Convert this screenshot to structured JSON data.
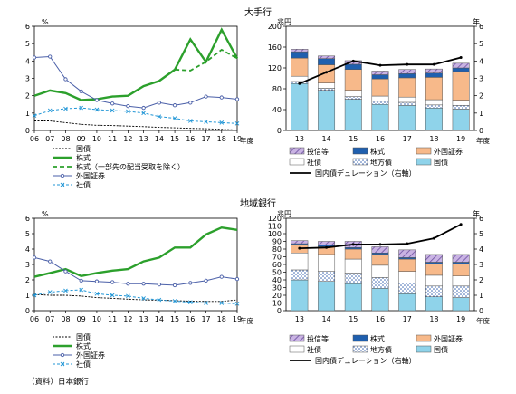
{
  "sections": [
    {
      "title": "大手行",
      "left": {
        "unit": "%",
        "x_unit": "年度",
        "ylim": [
          0,
          6
        ],
        "yticks": [
          0,
          1,
          2,
          3,
          4,
          5,
          6
        ],
        "x": [
          "06",
          "07",
          "08",
          "09",
          "10",
          "11",
          "12",
          "13",
          "14",
          "15",
          "16",
          "17",
          "18",
          "19"
        ],
        "legend": [
          "国債",
          "株式",
          "株式（一部先の配当受取を除く）",
          "外国証券",
          "社債"
        ],
        "series": [
          {
            "name": "国債",
            "color": "#000000",
            "values": [
              0.55,
              0.55,
              0.45,
              0.35,
              0.3,
              0.28,
              0.25,
              0.22,
              0.18,
              0.15,
              0.12,
              0.1,
              0.06,
              0.02
            ]
          },
          {
            "name": "株式",
            "color": "#2ca02c",
            "values": [
              2.0,
              2.3,
              2.15,
              1.75,
              1.8,
              1.95,
              2.0,
              2.55,
              2.85,
              3.5,
              5.25,
              3.95,
              5.8,
              4.15
            ]
          },
          {
            "name": "株式（一部先の配当受取を除く）",
            "color": "#2ca02c",
            "values": [
              null,
              null,
              null,
              null,
              null,
              null,
              null,
              null,
              null,
              3.5,
              3.45,
              3.95,
              4.65,
              4.15
            ]
          },
          {
            "name": "外国証券",
            "color": "#4a5fa8",
            "values": [
              4.2,
              4.25,
              2.95,
              2.25,
              1.75,
              1.55,
              1.4,
              1.3,
              1.6,
              1.45,
              1.6,
              1.95,
              1.9,
              1.8
            ]
          },
          {
            "name": "社債",
            "color": "#2196d6",
            "values": [
              0.85,
              1.15,
              1.25,
              1.3,
              1.2,
              1.15,
              1.1,
              1.0,
              0.8,
              0.7,
              0.55,
              0.5,
              0.45,
              0.4
            ]
          }
        ]
      },
      "right": {
        "unit": "兆円",
        "unit2": "年",
        "x_unit": "年度",
        "ylim": [
          0,
          200
        ],
        "yticks": [
          0,
          40,
          80,
          120,
          160,
          200
        ],
        "y2lim": [
          0,
          6
        ],
        "y2ticks": [
          0,
          1,
          2,
          3,
          4,
          5,
          6
        ],
        "categories": [
          "13",
          "14",
          "15",
          "16",
          "17",
          "18",
          "19"
        ],
        "stack_order": [
          "国債",
          "地方債",
          "社債",
          "外国証券",
          "株式",
          "投信等"
        ],
        "stacks": {
          "国債": [
            90,
            77,
            60,
            50,
            48,
            43,
            41
          ],
          "地方債": [
            4,
            4,
            5,
            6,
            6,
            6,
            7
          ],
          "社債": [
            10,
            10,
            12,
            10,
            10,
            10,
            10
          ],
          "外国証券": [
            35,
            35,
            40,
            33,
            37,
            43,
            55
          ],
          "株式": [
            12,
            12,
            10,
            8,
            8,
            8,
            7
          ],
          "投信等": [
            5,
            5,
            7,
            7,
            8,
            8,
            9
          ]
        },
        "duration_name": "国内債デュレーション（右軸）",
        "duration": [
          2.7,
          3.35,
          4.0,
          3.75,
          3.8,
          3.8,
          4.2
        ],
        "legend": [
          "投信等",
          "株式",
          "外国証券",
          "社債",
          "地方債",
          "国債",
          "国内債デュレーション（右軸）"
        ]
      }
    },
    {
      "title": "地域銀行",
      "left": {
        "unit": "%",
        "x_unit": "年度",
        "ylim": [
          0,
          6
        ],
        "yticks": [
          0,
          1,
          2,
          3,
          4,
          5,
          6
        ],
        "x": [
          "06",
          "07",
          "08",
          "09",
          "10",
          "11",
          "12",
          "13",
          "14",
          "15",
          "16",
          "17",
          "18",
          "19"
        ],
        "legend": [
          "国債",
          "株式",
          "外国証券",
          "社債"
        ],
        "series": [
          {
            "name": "国債",
            "color": "#000000",
            "values": [
              1.05,
              1.0,
              1.0,
              0.95,
              0.85,
              0.8,
              0.75,
              0.7,
              0.68,
              0.65,
              0.62,
              0.6,
              0.6,
              0.7
            ]
          },
          {
            "name": "株式",
            "color": "#2ca02c",
            "values": [
              2.2,
              2.45,
              2.7,
              2.25,
              2.45,
              2.6,
              2.7,
              3.2,
              3.45,
              4.1,
              4.1,
              4.95,
              5.4,
              5.25
            ]
          },
          {
            "name": "外国証券",
            "color": "#4a5fa8",
            "values": [
              3.45,
              3.2,
              2.55,
              1.95,
              1.9,
              1.85,
              1.75,
              1.75,
              1.7,
              1.65,
              1.8,
              1.95,
              2.2,
              2.05
            ]
          },
          {
            "name": "社債",
            "color": "#2196d6",
            "values": [
              1.0,
              1.2,
              1.3,
              1.35,
              1.1,
              1.0,
              0.95,
              0.8,
              0.7,
              0.62,
              0.55,
              0.5,
              0.5,
              0.45
            ]
          }
        ]
      },
      "right": {
        "unit": "兆円",
        "unit2": "年",
        "x_unit": "年度",
        "ylim": [
          0,
          120
        ],
        "yticks": [
          0,
          10,
          20,
          30,
          40,
          50,
          60,
          70,
          80,
          90,
          100,
          110,
          120
        ],
        "y2lim": [
          0,
          6
        ],
        "y2ticks": [
          0,
          1,
          2,
          3,
          4,
          5,
          6
        ],
        "categories": [
          "13",
          "14",
          "15",
          "16",
          "17",
          "18",
          "19"
        ],
        "stack_order": [
          "国債",
          "地方債",
          "社債",
          "外国証券",
          "株式",
          "投信等"
        ],
        "stacks": {
          "国債": [
            40,
            38,
            35,
            29,
            22,
            18,
            17
          ],
          "地方債": [
            13,
            13,
            14,
            14,
            14,
            14,
            15
          ],
          "社債": [
            22,
            22,
            18,
            16,
            15,
            14,
            13
          ],
          "外国証券": [
            10,
            10,
            13,
            14,
            16,
            15,
            16
          ],
          "株式": [
            2,
            2,
            2,
            2,
            2,
            2,
            2
          ],
          "投信等": [
            4,
            5,
            8,
            8,
            10,
            10,
            10
          ]
        },
        "duration_name": "国内債デュレーション（右軸）",
        "duration": [
          4.05,
          4.1,
          4.3,
          4.3,
          4.35,
          4.7,
          5.6
        ],
        "legend": [
          "投信等",
          "株式",
          "外国証券",
          "社債",
          "地方債",
          "国債",
          "国内債デュレーション（右軸）"
        ]
      }
    }
  ],
  "source_note": "（資料）日本銀行",
  "colors": {
    "国債": "#8fd3ea",
    "地方債": "#ffffff",
    "社債": "#ffffff",
    "外国証券": "#f7b98a",
    "株式": "#1f5fae",
    "投信等": "#b79ad6",
    "duration": "#000000"
  }
}
